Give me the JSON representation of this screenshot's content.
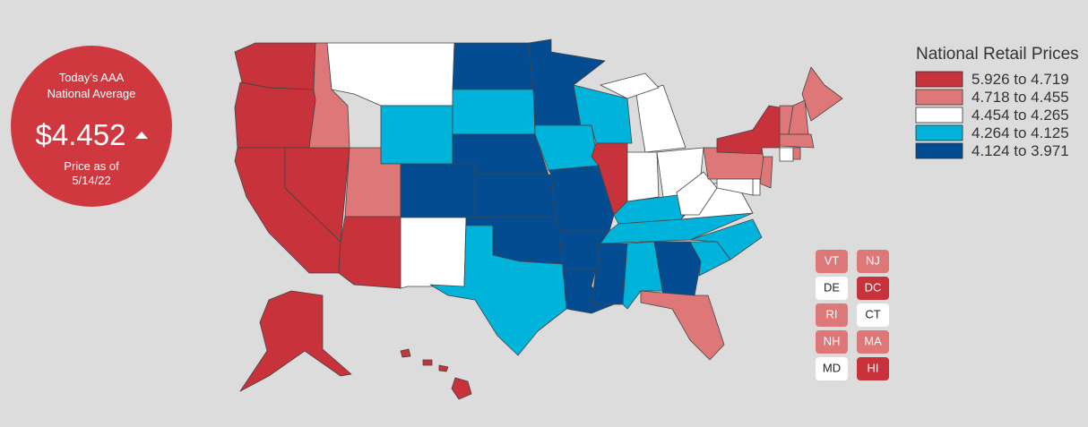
{
  "badge": {
    "title": "Today's AAA National Average",
    "price": "$4.452",
    "date_label": "Price as of",
    "date": "5/14/22"
  },
  "legend": {
    "title": "National Retail Prices",
    "items": [
      {
        "label": "5.926 to 4.719",
        "color": "#c8323a"
      },
      {
        "label": "4.718 to 4.455",
        "color": "#de7878"
      },
      {
        "label": "4.454 to 4.265",
        "color": "#ffffff"
      },
      {
        "label": "4.264 to 4.125",
        "color": "#00b3da"
      },
      {
        "label": "4.124 to 3.971",
        "color": "#034c92"
      }
    ]
  },
  "small_states": [
    "VT",
    "NJ",
    "DE",
    "DC",
    "RI",
    "CT",
    "NH",
    "MA",
    "MD",
    "HI"
  ]
}
